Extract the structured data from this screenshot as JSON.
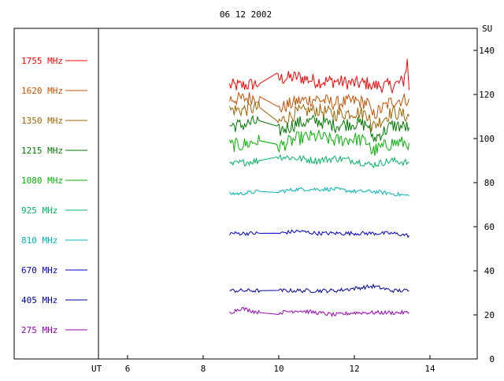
{
  "chart_data": {
    "type": "line",
    "title": "06 12 2002",
    "xlabel": "UT",
    "ylabel": "SU",
    "xlim": [
      3,
      15.25
    ],
    "ylim": [
      0,
      150
    ],
    "x_ticks": [
      6,
      8,
      10,
      12,
      14
    ],
    "y_ticks": [
      0,
      20,
      40,
      60,
      80,
      100,
      120,
      140
    ],
    "grid": false,
    "legend_position": "left",
    "gap": [
      9.95,
      12.45
    ],
    "series": [
      {
        "name": "1755 MHz",
        "color": "#ff0000",
        "x": [
          8.7,
          9.0,
          9.5,
          9.95,
          10.5,
          11.0,
          11.5,
          12.0,
          12.4,
          12.45,
          13.0,
          13.3,
          13.4,
          13.45
        ],
        "y": [
          124,
          124,
          125,
          127,
          128,
          126,
          126,
          125,
          125,
          124,
          124,
          126,
          135,
          122
        ]
      },
      {
        "name": "1620 MHz",
        "color": "#c85000",
        "x": [
          8.7,
          9.0,
          9.5,
          9.95,
          10.5,
          11.0,
          11.5,
          12.0,
          12.4,
          12.45,
          13.0,
          13.45
        ],
        "y": [
          118,
          118,
          119,
          113,
          117,
          118,
          116,
          117,
          116,
          110,
          117,
          118
        ]
      },
      {
        "name": "1350 MHz",
        "color": "#a06400",
        "x": [
          8.7,
          9.0,
          9.5,
          9.95,
          10.5,
          11.0,
          11.5,
          12.0,
          12.4,
          12.45,
          13.0,
          13.45
        ],
        "y": [
          113,
          113,
          114,
          107,
          112,
          113,
          111,
          112,
          111,
          105,
          112,
          110
        ]
      },
      {
        "name": "1215 MHz",
        "color": "#007800",
        "x": [
          8.7,
          9.0,
          9.5,
          9.95,
          10.5,
          11.0,
          11.5,
          12.0,
          12.4,
          12.45,
          13.0,
          13.45
        ],
        "y": [
          106,
          106,
          108,
          103,
          107,
          108,
          106,
          107,
          106,
          99,
          106,
          105
        ]
      },
      {
        "name": "1080 MHz",
        "color": "#00b400",
        "x": [
          8.7,
          9.0,
          9.5,
          9.95,
          10.5,
          11.0,
          11.5,
          12.0,
          12.4,
          12.45,
          13.0,
          13.45
        ],
        "y": [
          97,
          97,
          99,
          96,
          100,
          101,
          99,
          100,
          98,
          94,
          98,
          98
        ]
      },
      {
        "name": "925 MHz",
        "color": "#00b464",
        "x": [
          8.7,
          9.0,
          9.5,
          9.95,
          10.5,
          11.0,
          11.5,
          12.0,
          12.45,
          13.0,
          13.45
        ],
        "y": [
          88,
          89,
          90,
          92,
          91,
          90,
          91,
          90,
          88,
          90,
          89
        ]
      },
      {
        "name": "810 MHz",
        "color": "#00b4b4",
        "x": [
          8.7,
          9.0,
          9.5,
          10.0,
          10.5,
          11.0,
          11.5,
          12.0,
          12.5,
          13.0,
          13.45
        ],
        "y": [
          75,
          75,
          76,
          76,
          77,
          77,
          77,
          76,
          76,
          75,
          74
        ]
      },
      {
        "name": "670 MHz",
        "color": "#0000c8",
        "x": [
          8.7,
          9.0,
          9.5,
          10.0,
          10.5,
          11.0,
          11.5,
          12.0,
          12.5,
          13.0,
          13.45
        ],
        "y": [
          57,
          57,
          57,
          57,
          58,
          57,
          57,
          57,
          57,
          57,
          56
        ]
      },
      {
        "name": "405 MHz",
        "color": "#0000a0",
        "x": [
          8.7,
          9.0,
          9.5,
          10.0,
          10.5,
          11.0,
          11.5,
          12.0,
          12.5,
          13.0,
          13.45
        ],
        "y": [
          31,
          31,
          31,
          31,
          31,
          31,
          31,
          32,
          33,
          31,
          31
        ]
      },
      {
        "name": "275 MHz",
        "color": "#9600b4",
        "x": [
          8.7,
          9.0,
          9.5,
          10.0,
          10.5,
          11.0,
          11.5,
          12.0,
          12.5,
          13.0,
          13.45
        ],
        "y": [
          21,
          23,
          21,
          21,
          22,
          21,
          20,
          21,
          21,
          21,
          21
        ]
      }
    ]
  }
}
